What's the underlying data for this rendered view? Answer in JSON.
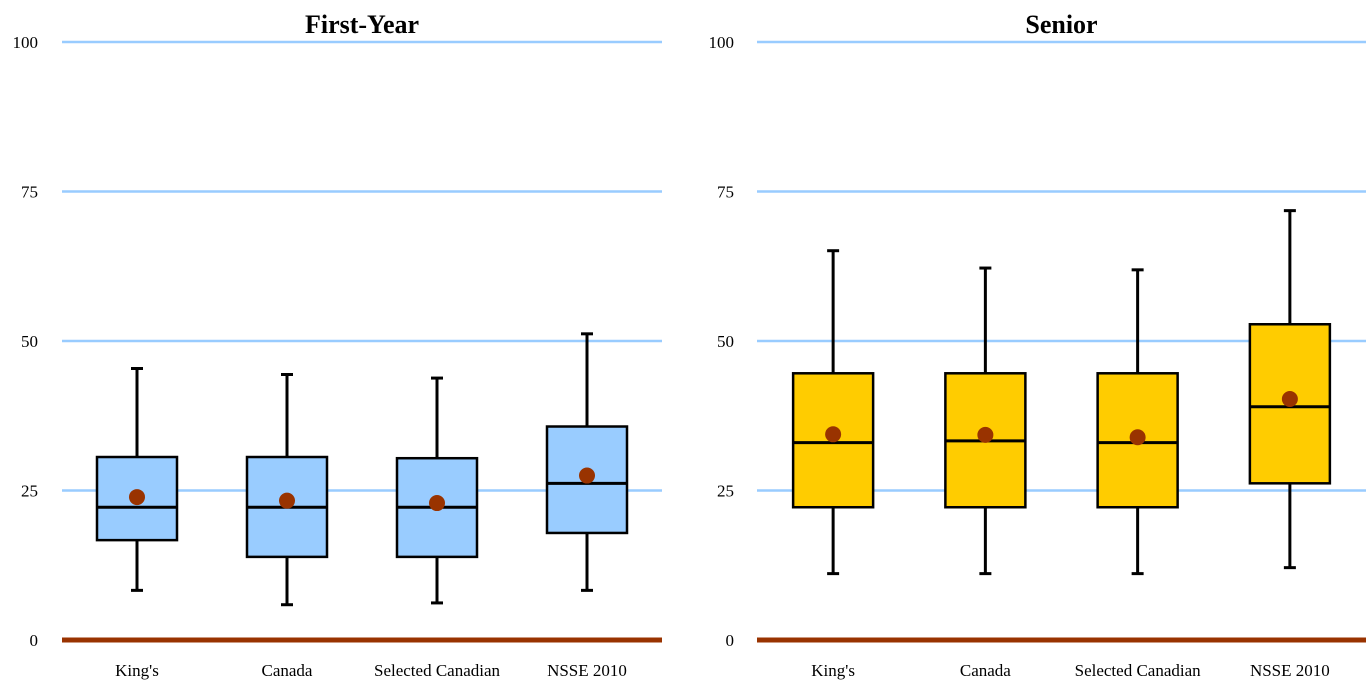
{
  "chart_data": [
    {
      "type": "box",
      "title": "First-Year",
      "categories": [
        "King's",
        "Canada",
        "Selected Canadian",
        "NSSE 2010"
      ],
      "ylim": [
        0,
        100
      ],
      "yticks": [
        0,
        25,
        50,
        75,
        100
      ],
      "grid": true,
      "box_color": "#99ccff",
      "mean_color": "#993300",
      "baseline_color": "#993300",
      "grid_color": "#99ccff",
      "boxes": [
        {
          "whisker_low": 8.3,
          "q1": 16.7,
          "median": 22.2,
          "q3": 30.6,
          "whisker_high": 45.4,
          "mean": 23.9
        },
        {
          "whisker_low": 5.9,
          "q1": 13.9,
          "median": 22.2,
          "q3": 30.6,
          "whisker_high": 44.4,
          "mean": 23.3
        },
        {
          "whisker_low": 6.2,
          "q1": 13.9,
          "median": 22.2,
          "q3": 30.4,
          "whisker_high": 43.8,
          "mean": 22.9
        },
        {
          "whisker_low": 8.3,
          "q1": 17.9,
          "median": 26.2,
          "q3": 35.7,
          "whisker_high": 51.2,
          "mean": 27.5
        }
      ]
    },
    {
      "type": "box",
      "title": "Senior",
      "categories": [
        "King's",
        "Canada",
        "Selected Canadian",
        "NSSE 2010"
      ],
      "ylim": [
        0,
        100
      ],
      "yticks": [
        0,
        25,
        50,
        75,
        100
      ],
      "grid": true,
      "box_color": "#ffcc00",
      "mean_color": "#993300",
      "baseline_color": "#993300",
      "grid_color": "#99ccff",
      "boxes": [
        {
          "whisker_low": 11.1,
          "q1": 22.2,
          "median": 33.0,
          "q3": 44.6,
          "whisker_high": 65.1,
          "mean": 34.4
        },
        {
          "whisker_low": 11.1,
          "q1": 22.2,
          "median": 33.3,
          "q3": 44.6,
          "whisker_high": 62.2,
          "mean": 34.3
        },
        {
          "whisker_low": 11.1,
          "q1": 22.2,
          "median": 33.0,
          "q3": 44.6,
          "whisker_high": 61.9,
          "mean": 33.9
        },
        {
          "whisker_low": 12.1,
          "q1": 26.2,
          "median": 39.0,
          "q3": 52.8,
          "whisker_high": 71.8,
          "mean": 40.3
        }
      ]
    }
  ]
}
